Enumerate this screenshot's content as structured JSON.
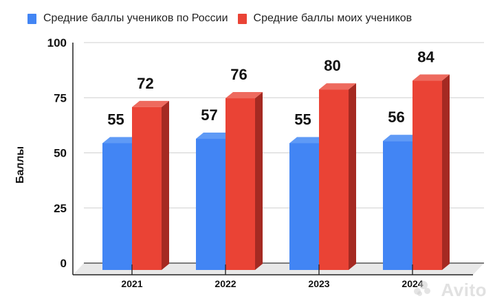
{
  "legend": {
    "items": [
      {
        "label": "Средние баллы учеников по России",
        "color": "#4285f4"
      },
      {
        "label": "Средние баллы моих учеников",
        "color": "#ea4335"
      }
    ]
  },
  "watermark": "Avito",
  "chart_data": {
    "type": "bar",
    "style": "3d-clustered-column",
    "title": "",
    "xlabel": "",
    "ylabel": "Баллы",
    "ylim": [
      0,
      100
    ],
    "yticks": [
      0,
      25,
      50,
      75,
      100
    ],
    "grid": true,
    "legend_position": "top",
    "categories": [
      "2021",
      "2022",
      "2023",
      "2024"
    ],
    "series": [
      {
        "name": "Средние баллы учеников по России",
        "color": "#4285f4",
        "values": [
          55,
          57,
          55,
          56
        ]
      },
      {
        "name": "Средние баллы моих учеников",
        "color": "#ea4335",
        "values": [
          72,
          76,
          80,
          84
        ]
      }
    ],
    "data_labels": true
  }
}
